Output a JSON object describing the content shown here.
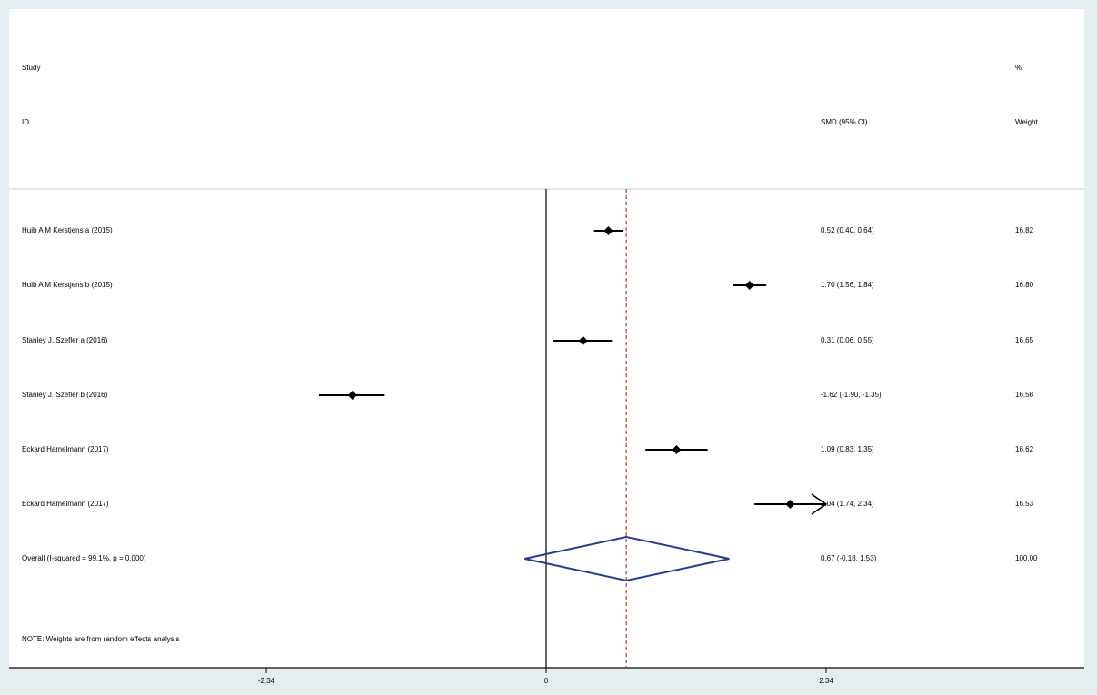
{
  "headers": {
    "study_line1": "Study",
    "study_line2": "ID",
    "smd_label": "SMD (95% CI)",
    "weight_line1": "%",
    "weight_line2": "Weight"
  },
  "note": "NOTE: Weights are from random effects analysis",
  "chart_data": {
    "type": "forest",
    "xlim": [
      -3.9,
      3.9
    ],
    "x_ticks": [
      -2.34,
      0,
      2.34
    ],
    "x_tick_labels": [
      "-2.34",
      "0",
      "2.34"
    ],
    "null_line": 0,
    "overall_line": 0.67,
    "colors": {
      "point": "#000000",
      "diamond": "#1f3f8f",
      "overall_line": "#c0392b",
      "background": "#e4eef0",
      "panel": "#ffffff"
    },
    "studies": [
      {
        "label": "Huib A M Kerstjens a (2015)",
        "smd": 0.52,
        "lo": 0.4,
        "hi": 0.64,
        "ci_text": "0.52 (0.40, 0.64)",
        "weight": "16.82"
      },
      {
        "label": "Huib A M Kerstjens b (2015)",
        "smd": 1.7,
        "lo": 1.56,
        "hi": 1.84,
        "ci_text": "1.70 (1.56, 1.84)",
        "weight": "16.80"
      },
      {
        "label": "Stanley J. Szefler a (2016)",
        "smd": 0.31,
        "lo": 0.06,
        "hi": 0.55,
        "ci_text": "0.31 (0.06, 0.55)",
        "weight": "16.65"
      },
      {
        "label": "Stanley J. Szefler b (2016)",
        "smd": -1.62,
        "lo": -1.9,
        "hi": -1.35,
        "ci_text": "-1.62 (-1.90, -1.35)",
        "weight": "16.58"
      },
      {
        "label": "Eckard Hamelmann  (2017)",
        "smd": 1.09,
        "lo": 0.83,
        "hi": 1.35,
        "ci_text": "1.09 (0.83, 1.35)",
        "weight": "16.62"
      },
      {
        "label": "Eckard Hamelmann  (2017)",
        "smd": 2.04,
        "lo": 1.74,
        "hi": 2.34,
        "ci_text": "2.04 (1.74, 2.34)",
        "weight": "16.53",
        "arrow_right": true
      }
    ],
    "overall": {
      "label": "Overall  (I-squared = 99.1%, p = 0.000)",
      "smd": 0.67,
      "lo": -0.18,
      "hi": 1.53,
      "ci_text": "0.67 (-0.18, 1.53)",
      "weight": "100.00"
    }
  }
}
